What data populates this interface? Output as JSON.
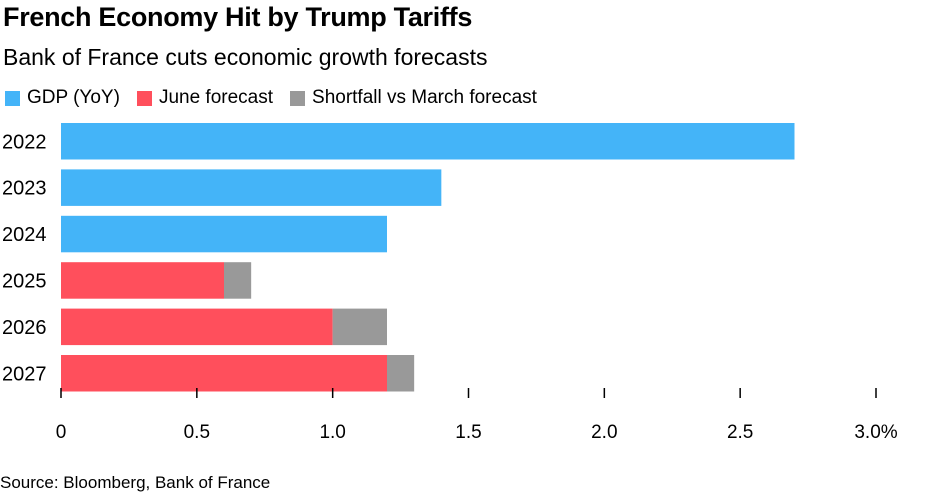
{
  "title": "French Economy Hit by Trump Tariffs",
  "subtitle": "Bank of France cuts economic growth forecasts",
  "source": "Source: Bloomberg, Bank of France",
  "chart_data": {
    "type": "bar",
    "orientation": "horizontal",
    "stacked": true,
    "categories": [
      "2022",
      "2023",
      "2024",
      "2025",
      "2026",
      "2027"
    ],
    "series": [
      {
        "name": "GDP (YoY)",
        "color": "#44b4f8",
        "values": [
          2.7,
          1.4,
          1.2,
          null,
          null,
          null
        ]
      },
      {
        "name": "June forecast",
        "color": "#ff4f5c",
        "values": [
          null,
          null,
          null,
          0.6,
          1.0,
          1.2
        ]
      },
      {
        "name": "Shortfall vs March forecast",
        "color": "#999999",
        "values": [
          null,
          null,
          null,
          0.1,
          0.2,
          0.1
        ]
      }
    ],
    "x_ticks": [
      {
        "value": 0,
        "label": "0"
      },
      {
        "value": 0.5,
        "label": "0.5"
      },
      {
        "value": 1.0,
        "label": "1.0"
      },
      {
        "value": 1.5,
        "label": "1.5"
      },
      {
        "value": 2.0,
        "label": "2.0"
      },
      {
        "value": 2.5,
        "label": "2.5"
      },
      {
        "value": 3.0,
        "label": "3.0%"
      }
    ],
    "xlim": [
      0,
      3.0
    ],
    "legend_position": "top-left",
    "grid": false
  }
}
